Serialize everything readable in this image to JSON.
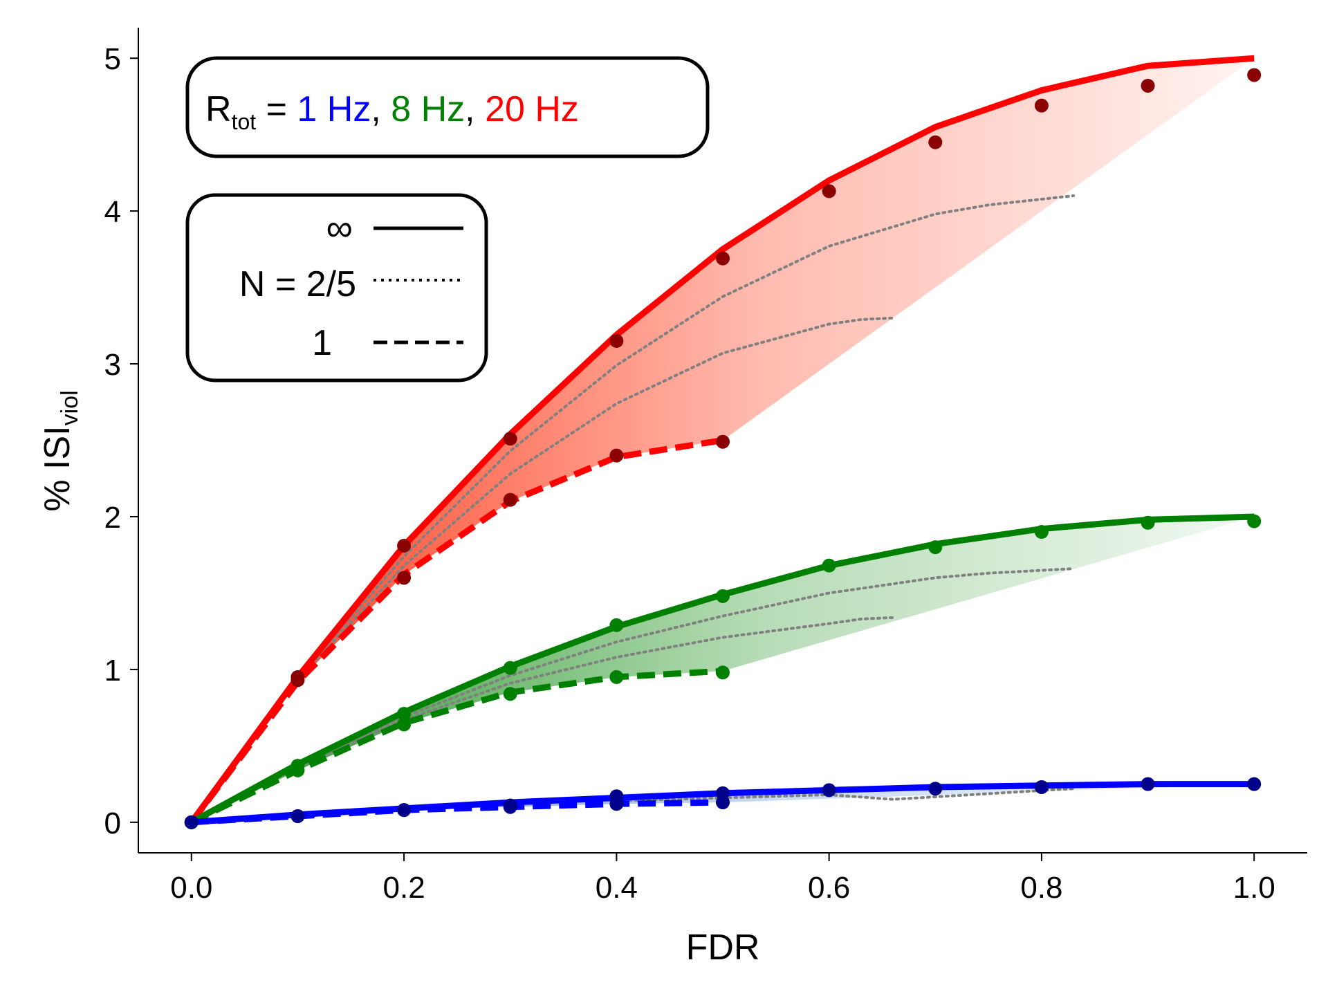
{
  "chart_data": {
    "type": "line",
    "xlabel": "FDR",
    "ylabel_main": "% ISI",
    "ylabel_sub": "viol",
    "xlim": [
      -0.05,
      1.05
    ],
    "ylim": [
      -0.2,
      5.2
    ],
    "x_ticks": [
      0.0,
      0.2,
      0.4,
      0.6,
      0.8,
      1.0
    ],
    "x_tick_labels": [
      "0.0",
      "0.2",
      "0.4",
      "0.6",
      "0.8",
      "1.0"
    ],
    "y_ticks": [
      0,
      1,
      2,
      3,
      4,
      5
    ],
    "y_tick_labels": [
      "0",
      "1",
      "2",
      "3",
      "4",
      "5"
    ],
    "grid": false,
    "rate_legend": {
      "prefix_main": "R",
      "prefix_sub": "tot",
      "equals": " = ",
      "separator": ", ",
      "items": [
        {
          "label": "1 Hz",
          "color": "#0000ff"
        },
        {
          "label": "8 Hz",
          "color": "#008000"
        },
        {
          "label": "20 Hz",
          "color": "#ff0000"
        }
      ]
    },
    "n_legend": {
      "entries": [
        {
          "label": "∞",
          "style": "solid"
        },
        {
          "label": "N = 2/5",
          "style": "dotted"
        },
        {
          "label": "1",
          "style": "dashed"
        }
      ]
    },
    "groups": [
      {
        "rate": "20 Hz",
        "line_color": "#ff0000",
        "marker_color": "#8b0000",
        "fill_color": "#ff3b1a",
        "inf_curve": {
          "x": [
            0,
            0.1,
            0.2,
            0.3,
            0.4,
            0.5,
            0.6,
            0.7,
            0.8,
            0.9,
            1.0
          ],
          "y": [
            0,
            0.95,
            1.81,
            2.54,
            3.19,
            3.75,
            4.2,
            4.55,
            4.79,
            4.95,
            5.0
          ]
        },
        "inf_points": {
          "x": [
            0,
            0.1,
            0.2,
            0.3,
            0.4,
            0.5,
            0.6,
            0.7,
            0.8,
            0.9,
            1.0
          ],
          "y": [
            0,
            0.95,
            1.81,
            2.51,
            3.15,
            3.69,
            4.13,
            4.45,
            4.69,
            4.82,
            4.89
          ]
        },
        "n1_curve": {
          "x": [
            0,
            0.1,
            0.2,
            0.3,
            0.4,
            0.5
          ],
          "y": [
            0,
            0.92,
            1.62,
            2.1,
            2.39,
            2.5
          ]
        },
        "n1_points": {
          "x": [
            0,
            0.1,
            0.2,
            0.3,
            0.4,
            0.5
          ],
          "y": [
            0,
            0.93,
            1.6,
            2.11,
            2.4,
            2.49
          ]
        },
        "dotted_curves": [
          {
            "x": [
              0,
              0.1,
              0.2,
              0.3,
              0.4,
              0.5,
              0.6,
              0.7,
              0.75,
              0.83
            ],
            "y": [
              0,
              0.94,
              1.74,
              2.43,
              2.99,
              3.44,
              3.77,
              3.98,
              4.04,
              4.1
            ]
          },
          {
            "x": [
              0,
              0.1,
              0.2,
              0.3,
              0.4,
              0.5,
              0.6,
              0.63,
              0.66
            ],
            "y": [
              0,
              0.93,
              1.68,
              2.28,
              2.74,
              3.07,
              3.26,
              3.29,
              3.3
            ]
          }
        ]
      },
      {
        "rate": "8 Hz",
        "line_color": "#008000",
        "marker_color": "#008000",
        "fill_color": "#2e9a2e",
        "inf_curve": {
          "x": [
            0,
            0.1,
            0.2,
            0.3,
            0.4,
            0.5,
            0.6,
            0.7,
            0.8,
            0.9,
            1.0
          ],
          "y": [
            0,
            0.38,
            0.72,
            1.02,
            1.28,
            1.49,
            1.68,
            1.82,
            1.92,
            1.98,
            2.0
          ]
        },
        "inf_points": {
          "x": [
            0,
            0.1,
            0.2,
            0.3,
            0.4,
            0.5,
            0.6,
            0.7,
            0.8,
            0.9,
            1.0
          ],
          "y": [
            0,
            0.37,
            0.71,
            1.01,
            1.29,
            1.48,
            1.68,
            1.8,
            1.9,
            1.96,
            1.97
          ]
        },
        "n1_curve": {
          "x": [
            0,
            0.1,
            0.2,
            0.3,
            0.4,
            0.5
          ],
          "y": [
            0,
            0.34,
            0.65,
            0.85,
            0.95,
            0.99
          ]
        },
        "n1_points": {
          "x": [
            0,
            0.1,
            0.2,
            0.3,
            0.4,
            0.5
          ],
          "y": [
            0,
            0.34,
            0.64,
            0.84,
            0.95,
            0.98
          ]
        },
        "dotted_curves": [
          {
            "x": [
              0,
              0.1,
              0.2,
              0.3,
              0.4,
              0.5,
              0.6,
              0.7,
              0.75,
              0.83
            ],
            "y": [
              0,
              0.37,
              0.69,
              0.96,
              1.18,
              1.35,
              1.5,
              1.6,
              1.63,
              1.66
            ]
          },
          {
            "x": [
              0,
              0.1,
              0.2,
              0.3,
              0.4,
              0.5,
              0.6,
              0.63,
              0.66
            ],
            "y": [
              0,
              0.36,
              0.67,
              0.91,
              1.08,
              1.21,
              1.3,
              1.33,
              1.34
            ]
          }
        ]
      },
      {
        "rate": "1 Hz",
        "line_color": "#0000ff",
        "marker_color": "#00008b",
        "fill_color": "#5a8fd6",
        "inf_curve": {
          "x": [
            0,
            0.1,
            0.2,
            0.3,
            0.4,
            0.5,
            0.6,
            0.7,
            0.8,
            0.9,
            1.0
          ],
          "y": [
            0,
            0.05,
            0.09,
            0.13,
            0.16,
            0.19,
            0.21,
            0.23,
            0.24,
            0.25,
            0.25
          ]
        },
        "inf_points": {
          "x": [
            0,
            0.1,
            0.2,
            0.3,
            0.4,
            0.5,
            0.6,
            0.7,
            0.8,
            0.9,
            1.0
          ],
          "y": [
            0,
            0.04,
            0.08,
            0.11,
            0.17,
            0.19,
            0.21,
            0.22,
            0.23,
            0.25,
            0.25
          ]
        },
        "n1_curve": {
          "x": [
            0,
            0.1,
            0.2,
            0.3,
            0.4,
            0.5
          ],
          "y": [
            0,
            0.04,
            0.08,
            0.1,
            0.12,
            0.13
          ]
        },
        "n1_points": {
          "x": [
            0,
            0.1,
            0.2,
            0.3,
            0.4,
            0.5
          ],
          "y": [
            0,
            0.04,
            0.08,
            0.1,
            0.12,
            0.13
          ]
        },
        "dotted_curves": [
          {
            "x": [
              0.4,
              0.5,
              0.6,
              0.66,
              0.83
            ],
            "y": [
              0.14,
              0.16,
              0.18,
              0.15,
              0.22
            ]
          }
        ]
      }
    ]
  }
}
